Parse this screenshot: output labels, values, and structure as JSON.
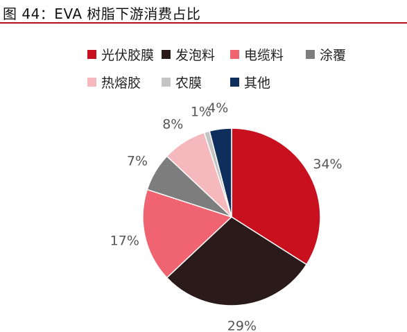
{
  "header": {
    "title": "图 44：EVA 树脂下游消费占比"
  },
  "chart_data": {
    "type": "pie",
    "title": "",
    "legend_position": "top",
    "slices": [
      {
        "label": "光伏胶膜",
        "value": 34,
        "display": "34%",
        "color": "#c8101e"
      },
      {
        "label": "发泡料",
        "value": 29,
        "display": "29%",
        "color": "#2b1a1a"
      },
      {
        "label": "电缆料",
        "value": 17,
        "display": "17%",
        "color": "#ef6470"
      },
      {
        "label": "涂覆",
        "value": 7,
        "display": "7%",
        "color": "#7d7d7d"
      },
      {
        "label": "热熔胶",
        "value": 8,
        "display": "8%",
        "color": "#f4b8bd"
      },
      {
        "label": "农膜",
        "value": 1,
        "display": "1%",
        "color": "#c4c4c4"
      },
      {
        "label": "其他",
        "value": 4,
        "display": "4%",
        "color": "#0e2f5c"
      }
    ]
  }
}
